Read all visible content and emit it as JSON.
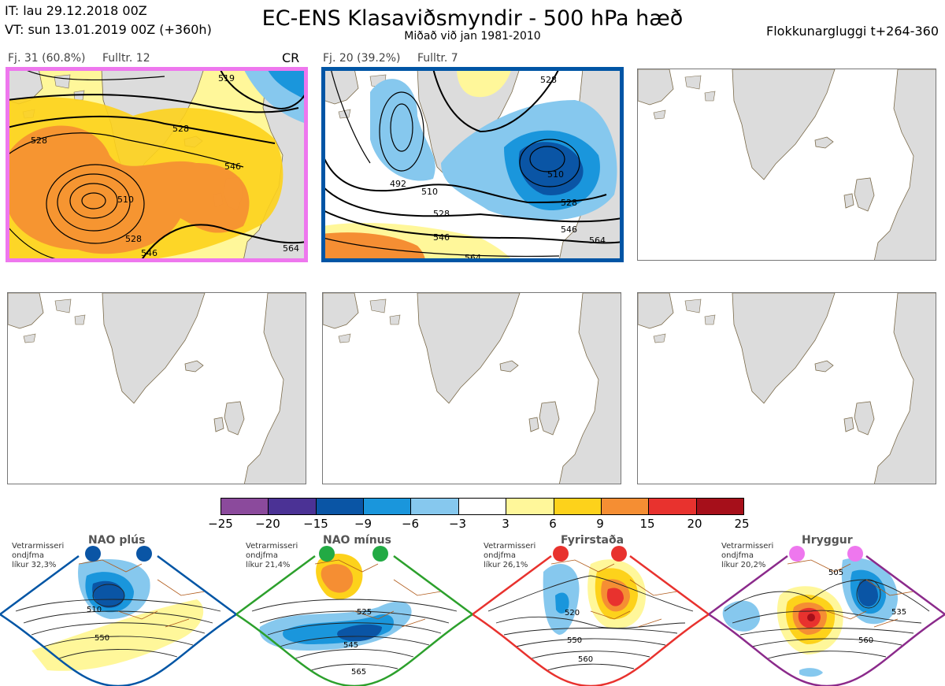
{
  "header": {
    "it": "IT: lau 29.12.2018 00Z",
    "vt": "VT: sun 13.01.2019 00Z  (+360h)",
    "title": "EC-ENS Klasaviðsmyndir - 500 hPa hæð",
    "subtitle": "Miðað við jan 1981-2010",
    "window": "Flokkunargluggi t+264-360"
  },
  "clusters": [
    {
      "label": "Fj. 31 (60.8%)",
      "rep": "Fulltr. 12",
      "tag": "CR",
      "frame_color": "#ee77ee"
    },
    {
      "label": "Fj. 20 (39.2%)",
      "rep": "Fulltr. 7",
      "tag": "",
      "frame_color": "#0055a5"
    }
  ],
  "panel1_contours": [
    "528",
    "528",
    "546",
    "510",
    "528",
    "546",
    "564",
    "519"
  ],
  "panel2_contours": [
    "492",
    "510",
    "528",
    "546",
    "564",
    "510",
    "528",
    "546",
    "564",
    "528"
  ],
  "colorbar": {
    "ticks": [
      "−25",
      "−20",
      "−15",
      "−9",
      "−6",
      "−3",
      "3",
      "6",
      "9",
      "15",
      "20",
      "25"
    ],
    "colors": [
      "#8b4a9c",
      "#4b3295",
      "#0a55a5",
      "#1a96dc",
      "#86c8ee",
      "#ffffff",
      "#fff79a",
      "#fdd21b",
      "#f58e33",
      "#e8322e",
      "#a60f1a"
    ]
  },
  "regimes": [
    {
      "name": "NAO plús",
      "line1": "Vetrarmisseri",
      "line2": "ondjfma",
      "line3": "líkur 32,3%",
      "color": "#0055a5",
      "dot": "#0a55a5",
      "c1": "510",
      "c2": "550",
      "c3": ""
    },
    {
      "name": "NAO mínus",
      "line1": "Vetrarmisseri",
      "line2": "ondjfma",
      "line3": "líkur 21,4%",
      "color": "#2ca02c",
      "dot": "#22aa44",
      "c1": "525",
      "c2": "545",
      "c3": "565"
    },
    {
      "name": "Fyrirstaða",
      "line1": "Vetrarmisseri",
      "line2": "ondjfma",
      "line3": "líkur 26,1%",
      "color": "#e8322e",
      "dot": "#e8322e",
      "c1": "520",
      "c2": "550",
      "c3": "560"
    },
    {
      "name": "Hryggur",
      "line1": "Vetrarmisseri",
      "line2": "ondjfma",
      "line3": "líkur 20,2%",
      "color": "#8b2a8b",
      "dot": "#ee77ee",
      "c1": "505",
      "c2": "535",
      "c3": "560"
    }
  ]
}
